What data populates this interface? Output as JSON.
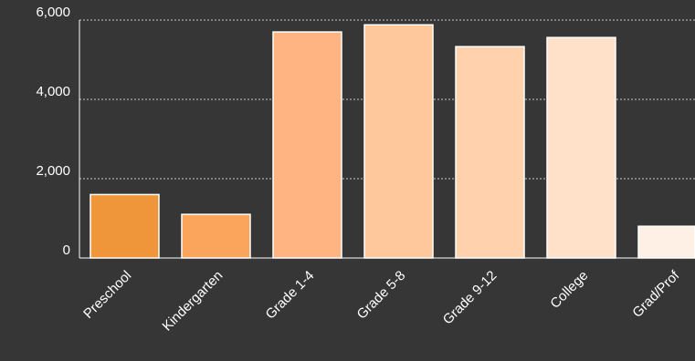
{
  "chart_data": {
    "type": "bar",
    "categories": [
      "Preschool",
      "Kindergarten",
      "Grade 1-4",
      "Grade 5-8",
      "Grade 9-12",
      "College",
      "Grad/Prof"
    ],
    "values": [
      1600,
      1100,
      5700,
      5880,
      5330,
      5560,
      800
    ],
    "bar_colors": [
      "#f0963a",
      "#fba45c",
      "#ffb482",
      "#ffc79c",
      "#ffd1ad",
      "#ffe0c9",
      "#fff0e6"
    ],
    "y_ticks": [
      0,
      2000,
      4000,
      6000
    ],
    "y_tick_labels": [
      "0",
      "2,000",
      "4,000",
      "6,000"
    ],
    "ylim": [
      0,
      6000
    ],
    "grid": true,
    "background": "#363636",
    "text_color": "#ffffff"
  }
}
